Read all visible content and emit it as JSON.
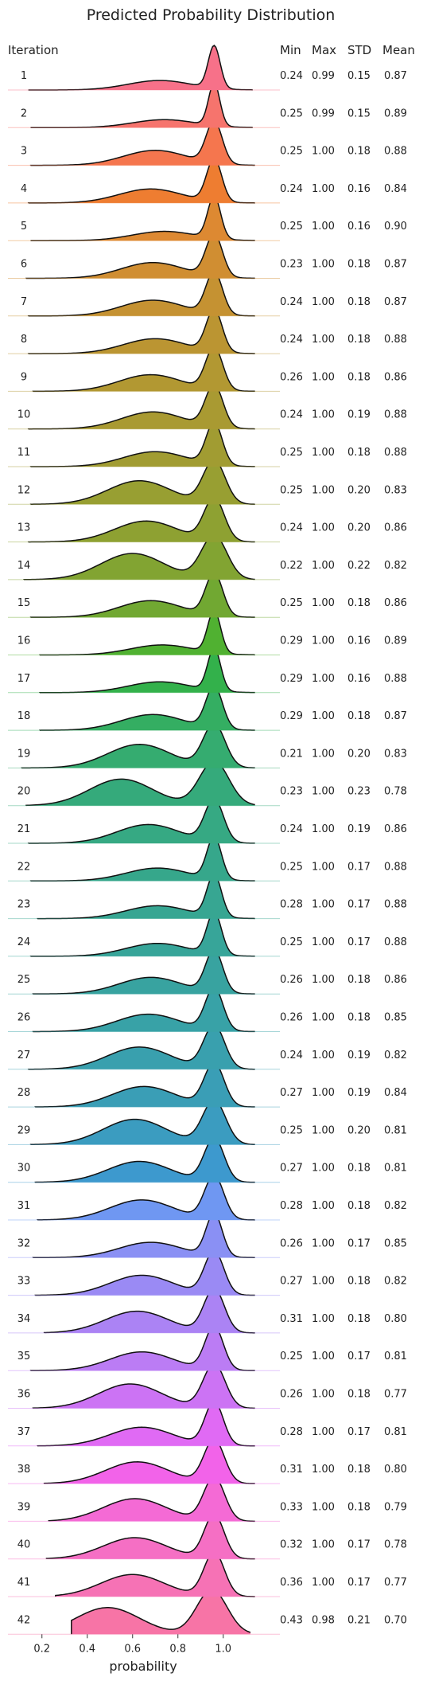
{
  "chart_data": {
    "type": "ridgeline",
    "title": "Predicted Probability Distribution",
    "xlabel": "probability",
    "xlim": [
      0.05,
      1.25
    ],
    "xticks": [
      "0.2",
      "0.4",
      "0.6",
      "0.8",
      "1.0"
    ],
    "xtick_values": [
      0.2,
      0.4,
      0.6,
      0.8,
      1.0
    ],
    "grid": false,
    "legend": "none",
    "columns": {
      "label": "Iteration",
      "min": "Min",
      "max": "Max",
      "std": "STD",
      "mean": "Mean"
    },
    "series": [
      {
        "name": "1",
        "min": "0.24",
        "max": "0.99",
        "std": "0.15",
        "mean": "0.87",
        "color": "#f77189"
      },
      {
        "name": "2",
        "min": "0.25",
        "max": "0.99",
        "std": "0.15",
        "mean": "0.89",
        "color": "#f6746d"
      },
      {
        "name": "3",
        "min": "0.25",
        "max": "1.00",
        "std": "0.18",
        "mean": "0.88",
        "color": "#f5764e"
      },
      {
        "name": "4",
        "min": "0.24",
        "max": "1.00",
        "std": "0.16",
        "mean": "0.84",
        "color": "#ee7d31"
      },
      {
        "name": "5",
        "min": "0.25",
        "max": "1.00",
        "std": "0.16",
        "mean": "0.90",
        "color": "#dd8932"
      },
      {
        "name": "6",
        "min": "0.23",
        "max": "1.00",
        "std": "0.18",
        "mean": "0.87",
        "color": "#d08e32"
      },
      {
        "name": "7",
        "min": "0.24",
        "max": "1.00",
        "std": "0.18",
        "mean": "0.87",
        "color": "#c59232"
      },
      {
        "name": "8",
        "min": "0.24",
        "max": "1.00",
        "std": "0.18",
        "mean": "0.88",
        "color": "#bb9532"
      },
      {
        "name": "9",
        "min": "0.26",
        "max": "1.00",
        "std": "0.18",
        "mean": "0.86",
        "color": "#b29832"
      },
      {
        "name": "10",
        "min": "0.24",
        "max": "1.00",
        "std": "0.19",
        "mean": "0.88",
        "color": "#a99a32"
      },
      {
        "name": "11",
        "min": "0.25",
        "max": "1.00",
        "std": "0.18",
        "mean": "0.88",
        "color": "#a19c32"
      },
      {
        "name": "12",
        "min": "0.25",
        "max": "1.00",
        "std": "0.20",
        "mean": "0.83",
        "color": "#989f32"
      },
      {
        "name": "13",
        "min": "0.24",
        "max": "1.00",
        "std": "0.20",
        "mean": "0.86",
        "color": "#8ea132"
      },
      {
        "name": "14",
        "min": "0.22",
        "max": "1.00",
        "std": "0.22",
        "mean": "0.82",
        "color": "#82a432"
      },
      {
        "name": "15",
        "min": "0.25",
        "max": "1.00",
        "std": "0.18",
        "mean": "0.86",
        "color": "#71a832"
      },
      {
        "name": "16",
        "min": "0.29",
        "max": "1.00",
        "std": "0.16",
        "mean": "0.89",
        "color": "#50b131"
      },
      {
        "name": "17",
        "min": "0.29",
        "max": "1.00",
        "std": "0.16",
        "mean": "0.88",
        "color": "#33b14b"
      },
      {
        "name": "18",
        "min": "0.29",
        "max": "1.00",
        "std": "0.18",
        "mean": "0.87",
        "color": "#34ae62"
      },
      {
        "name": "19",
        "min": "0.21",
        "max": "1.00",
        "std": "0.20",
        "mean": "0.83",
        "color": "#35ac70"
      },
      {
        "name": "20",
        "min": "0.23",
        "max": "1.00",
        "std": "0.23",
        "mean": "0.78",
        "color": "#35aa7b"
      },
      {
        "name": "21",
        "min": "0.24",
        "max": "1.00",
        "std": "0.19",
        "mean": "0.86",
        "color": "#36a983"
      },
      {
        "name": "22",
        "min": "0.25",
        "max": "1.00",
        "std": "0.17",
        "mean": "0.88",
        "color": "#36a78b"
      },
      {
        "name": "23",
        "min": "0.28",
        "max": "1.00",
        "std": "0.17",
        "mean": "0.88",
        "color": "#37a692"
      },
      {
        "name": "24",
        "min": "0.25",
        "max": "1.00",
        "std": "0.17",
        "mean": "0.88",
        "color": "#37a599"
      },
      {
        "name": "25",
        "min": "0.26",
        "max": "1.00",
        "std": "0.18",
        "mean": "0.86",
        "color": "#38a3a0"
      },
      {
        "name": "26",
        "min": "0.26",
        "max": "1.00",
        "std": "0.18",
        "mean": "0.85",
        "color": "#38a2a7"
      },
      {
        "name": "27",
        "min": "0.24",
        "max": "1.00",
        "std": "0.19",
        "mean": "0.82",
        "color": "#39a0ae"
      },
      {
        "name": "28",
        "min": "0.27",
        "max": "1.00",
        "std": "0.19",
        "mean": "0.84",
        "color": "#3a9eb6"
      },
      {
        "name": "29",
        "min": "0.25",
        "max": "1.00",
        "std": "0.20",
        "mean": "0.81",
        "color": "#3b9cc0"
      },
      {
        "name": "30",
        "min": "0.27",
        "max": "1.00",
        "std": "0.18",
        "mean": "0.81",
        "color": "#3d99ce"
      },
      {
        "name": "31",
        "min": "0.28",
        "max": "1.00",
        "std": "0.18",
        "mean": "0.82",
        "color": "#6f97f2"
      },
      {
        "name": "32",
        "min": "0.26",
        "max": "1.00",
        "std": "0.17",
        "mean": "0.85",
        "color": "#8a90f4"
      },
      {
        "name": "33",
        "min": "0.27",
        "max": "1.00",
        "std": "0.18",
        "mean": "0.82",
        "color": "#9a8af4"
      },
      {
        "name": "34",
        "min": "0.31",
        "max": "1.00",
        "std": "0.18",
        "mean": "0.80",
        "color": "#ab83f4"
      },
      {
        "name": "35",
        "min": "0.25",
        "max": "1.00",
        "std": "0.17",
        "mean": "0.81",
        "color": "#bb7cf4"
      },
      {
        "name": "36",
        "min": "0.26",
        "max": "1.00",
        "std": "0.18",
        "mean": "0.77",
        "color": "#cc73f4"
      },
      {
        "name": "37",
        "min": "0.28",
        "max": "1.00",
        "std": "0.17",
        "mean": "0.81",
        "color": "#e06af4"
      },
      {
        "name": "38",
        "min": "0.31",
        "max": "1.00",
        "std": "0.18",
        "mean": "0.80",
        "color": "#f263e9"
      },
      {
        "name": "39",
        "min": "0.33",
        "max": "1.00",
        "std": "0.18",
        "mean": "0.79",
        "color": "#f46ad5"
      },
      {
        "name": "40",
        "min": "0.32",
        "max": "1.00",
        "std": "0.17",
        "mean": "0.78",
        "color": "#f56fc4"
      },
      {
        "name": "41",
        "min": "0.36",
        "max": "1.00",
        "std": "0.17",
        "mean": "0.77",
        "color": "#f672b5"
      },
      {
        "name": "42",
        "min": "0.43",
        "max": "0.98",
        "std": "0.21",
        "mean": "0.70",
        "color": "#f774a6"
      }
    ]
  }
}
